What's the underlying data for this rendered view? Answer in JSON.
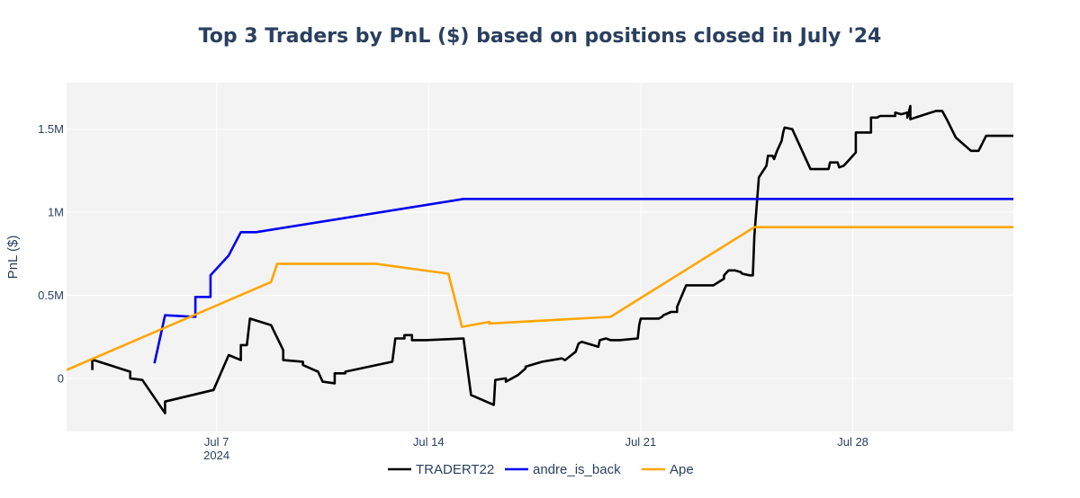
{
  "colors": {
    "plot_bg": "#f3f3f3",
    "grid": "#ffffff",
    "text": "#2a3f5f"
  },
  "chart_data": {
    "type": "line",
    "title": "Top 3 Traders by PnL ($) based on positions closed in July '24",
    "xlabel": "",
    "ylabel": "PnL ($)",
    "xlim": [
      2.05,
      33.3
    ],
    "ylim": [
      -320000,
      1780000
    ],
    "x_unit": "day of July 2024",
    "x_ticks": [
      {
        "value": 7,
        "label": "Jul 7",
        "sublabel": "2024"
      },
      {
        "value": 14,
        "label": "Jul 14"
      },
      {
        "value": 21,
        "label": "Jul 21"
      },
      {
        "value": 28,
        "label": "Jul 28"
      }
    ],
    "y_ticks": [
      {
        "value": 0,
        "label": "0"
      },
      {
        "value": 500000,
        "label": "0.5M"
      },
      {
        "value": 1000000,
        "label": "1M"
      },
      {
        "value": 1500000,
        "label": "1.5M"
      }
    ],
    "grid": true,
    "legend_position": "bottom-center",
    "series": [
      {
        "name": "TRADERT22",
        "color": "#000000",
        "x": [
          2.9,
          2.9,
          2.95,
          4.15,
          4.15,
          4.55,
          4.55,
          5.3,
          5.3,
          6.9,
          7.4,
          7.8,
          7.8,
          8.0,
          8.1,
          8.8,
          9.2,
          9.2,
          9.85,
          9.85,
          10.1,
          10.35,
          10.5,
          10.9,
          10.9,
          11.25,
          11.25,
          12.8,
          12.9,
          13.2,
          13.2,
          13.45,
          13.45,
          13.9,
          15.15,
          15.15,
          15.4,
          16.15,
          16.2,
          16.55,
          16.55,
          16.95,
          17.2,
          17.2,
          17.75,
          18.4,
          18.5,
          18.85,
          18.95,
          19.05,
          19.6,
          19.65,
          19.85,
          20.0,
          20.2,
          20.3,
          20.9,
          20.95,
          21.0,
          21.6,
          21.7,
          21.75,
          22.0,
          22.2,
          22.2,
          22.5,
          22.9,
          23.4,
          23.75,
          23.75,
          23.9,
          24.1,
          24.3,
          24.35,
          24.6,
          24.7,
          24.75,
          24.9,
          25.15,
          25.2,
          25.35,
          25.4,
          25.5,
          25.65,
          25.7,
          25.75,
          26.0,
          26.6,
          27.2,
          27.25,
          27.5,
          27.55,
          27.7,
          27.8,
          28.1,
          28.1,
          28.6,
          28.6,
          28.8,
          28.9,
          29.4,
          29.4,
          29.6,
          29.8,
          29.8,
          29.9,
          29.9,
          30.4,
          30.75,
          30.95,
          31.1,
          31.4,
          31.9,
          31.95,
          32.15,
          32.4
        ],
        "y": [
          50000,
          110000,
          110000,
          40000,
          0,
          -10000,
          -10000,
          -210000,
          -140000,
          -70000,
          140000,
          110000,
          200000,
          200000,
          360000,
          320000,
          170000,
          110000,
          100000,
          80000,
          60000,
          40000,
          -20000,
          -30000,
          30000,
          30000,
          40000,
          100000,
          240000,
          240000,
          260000,
          260000,
          230000,
          230000,
          240000,
          240000,
          -100000,
          -160000,
          -10000,
          0,
          -20000,
          20000,
          60000,
          70000,
          100000,
          120000,
          110000,
          160000,
          210000,
          220000,
          190000,
          230000,
          240000,
          230000,
          230000,
          230000,
          240000,
          320000,
          360000,
          360000,
          370000,
          380000,
          400000,
          400000,
          430000,
          560000,
          560000,
          560000,
          600000,
          620000,
          650000,
          650000,
          640000,
          630000,
          620000,
          620000,
          860000,
          1210000,
          1280000,
          1340000,
          1340000,
          1320000,
          1370000,
          1430000,
          1480000,
          1510000,
          1500000,
          1260000,
          1260000,
          1300000,
          1300000,
          1270000,
          1280000,
          1300000,
          1360000,
          1480000,
          1480000,
          1570000,
          1570000,
          1580000,
          1580000,
          1600000,
          1590000,
          1600000,
          1570000,
          1640000,
          1560000,
          1590000,
          1610000,
          1610000,
          1560000,
          1450000,
          1370000,
          1370000,
          1370000,
          1460000
        ],
        "x_end": 33.3,
        "y_end": 1460000
      },
      {
        "name": "andre_is_back",
        "color": "#0000ee",
        "x": [
          4.95,
          5.3,
          6.3,
          6.3,
          6.45,
          6.8,
          6.8,
          7.4,
          7.8,
          8.3,
          15.15,
          33.3
        ],
        "y": [
          90000,
          380000,
          370000,
          490000,
          490000,
          490000,
          620000,
          740000,
          880000,
          880000,
          1080000,
          1080000
        ]
      },
      {
        "name": "Ape",
        "color": "#ffa500",
        "x": [
          2.05,
          8.8,
          9.0,
          12.2,
          12.25,
          14.65,
          15.1,
          16.0,
          16.0,
          20.0,
          24.75,
          33.3
        ],
        "y": [
          50000,
          580000,
          690000,
          690000,
          690000,
          630000,
          310000,
          340000,
          330000,
          370000,
          910000,
          910000
        ]
      }
    ]
  }
}
